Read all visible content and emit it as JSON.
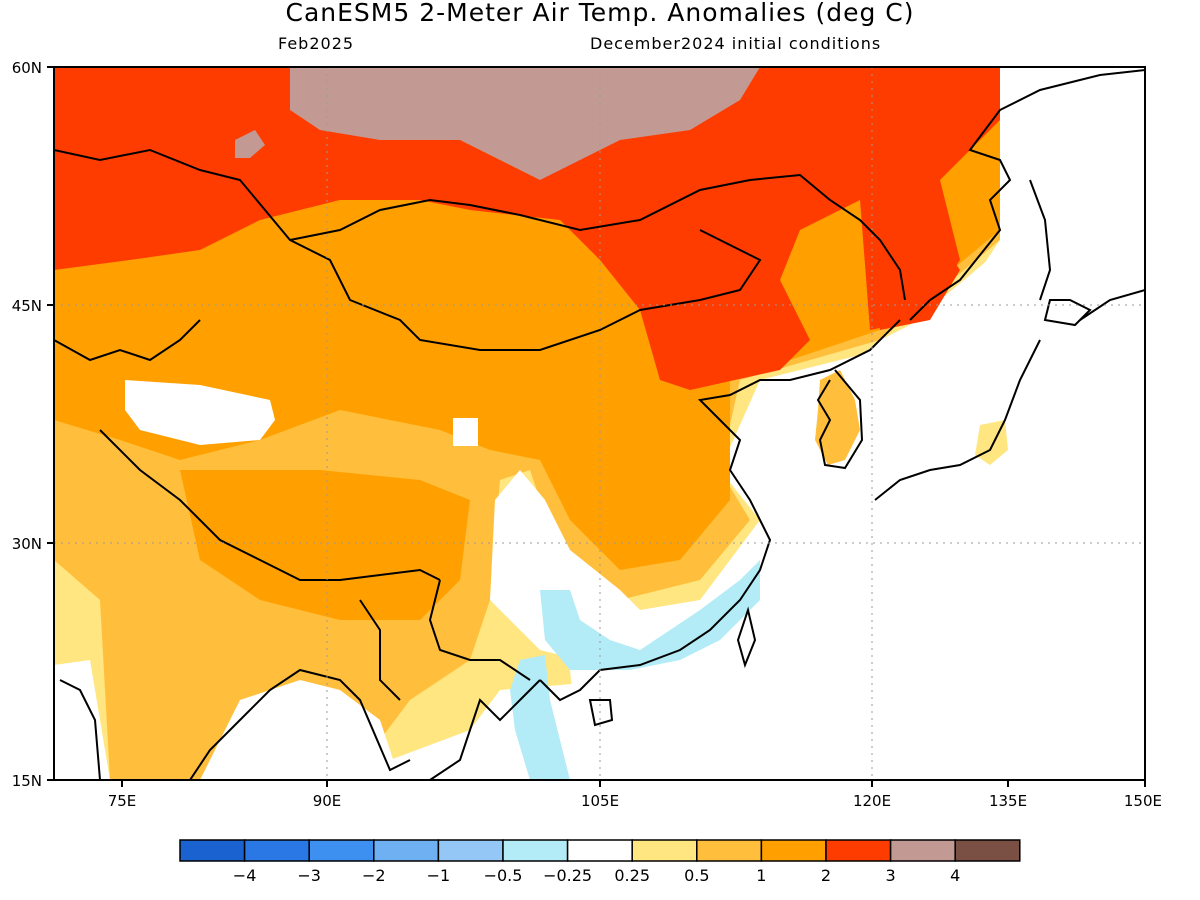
{
  "title": "CanESM5 2-Meter Air Temp. Anomalies (deg C)",
  "valid_month": "Feb2025",
  "init": "December2024 initial conditions",
  "lat_ticks": [
    "60N",
    "45N",
    "30N",
    "15N"
  ],
  "lon_ticks": [
    "75E",
    "90E",
    "105E",
    "120E",
    "135E",
    "150E"
  ],
  "legend": {
    "labels": [
      "−4",
      "−3",
      "−2",
      "−1",
      "−0.5",
      "−0.25",
      "0.25",
      "0.5",
      "1",
      "2",
      "3",
      "4"
    ],
    "colors": [
      "#1a62d0",
      "#2a78e6",
      "#3d8ff0",
      "#6eb0f2",
      "#94c7f5",
      "#b3ecf6",
      "#ffffff",
      "#ffe680",
      "#ffbf3d",
      "#ffa000",
      "#ff3c00",
      "#c39a93",
      "#7a5044"
    ]
  },
  "map": {
    "extent": {
      "lon": [
        70,
        150
      ],
      "lat": [
        15,
        60
      ]
    },
    "regions": [
      "cool-anomaly-south-china",
      "cool-anomaly-indochina",
      "neutral-sichuan-basin",
      "neutral-tarim-basin",
      "warm-mongolia-north-china",
      "very-warm-siberia",
      "extreme-warm-baikal"
    ]
  }
}
